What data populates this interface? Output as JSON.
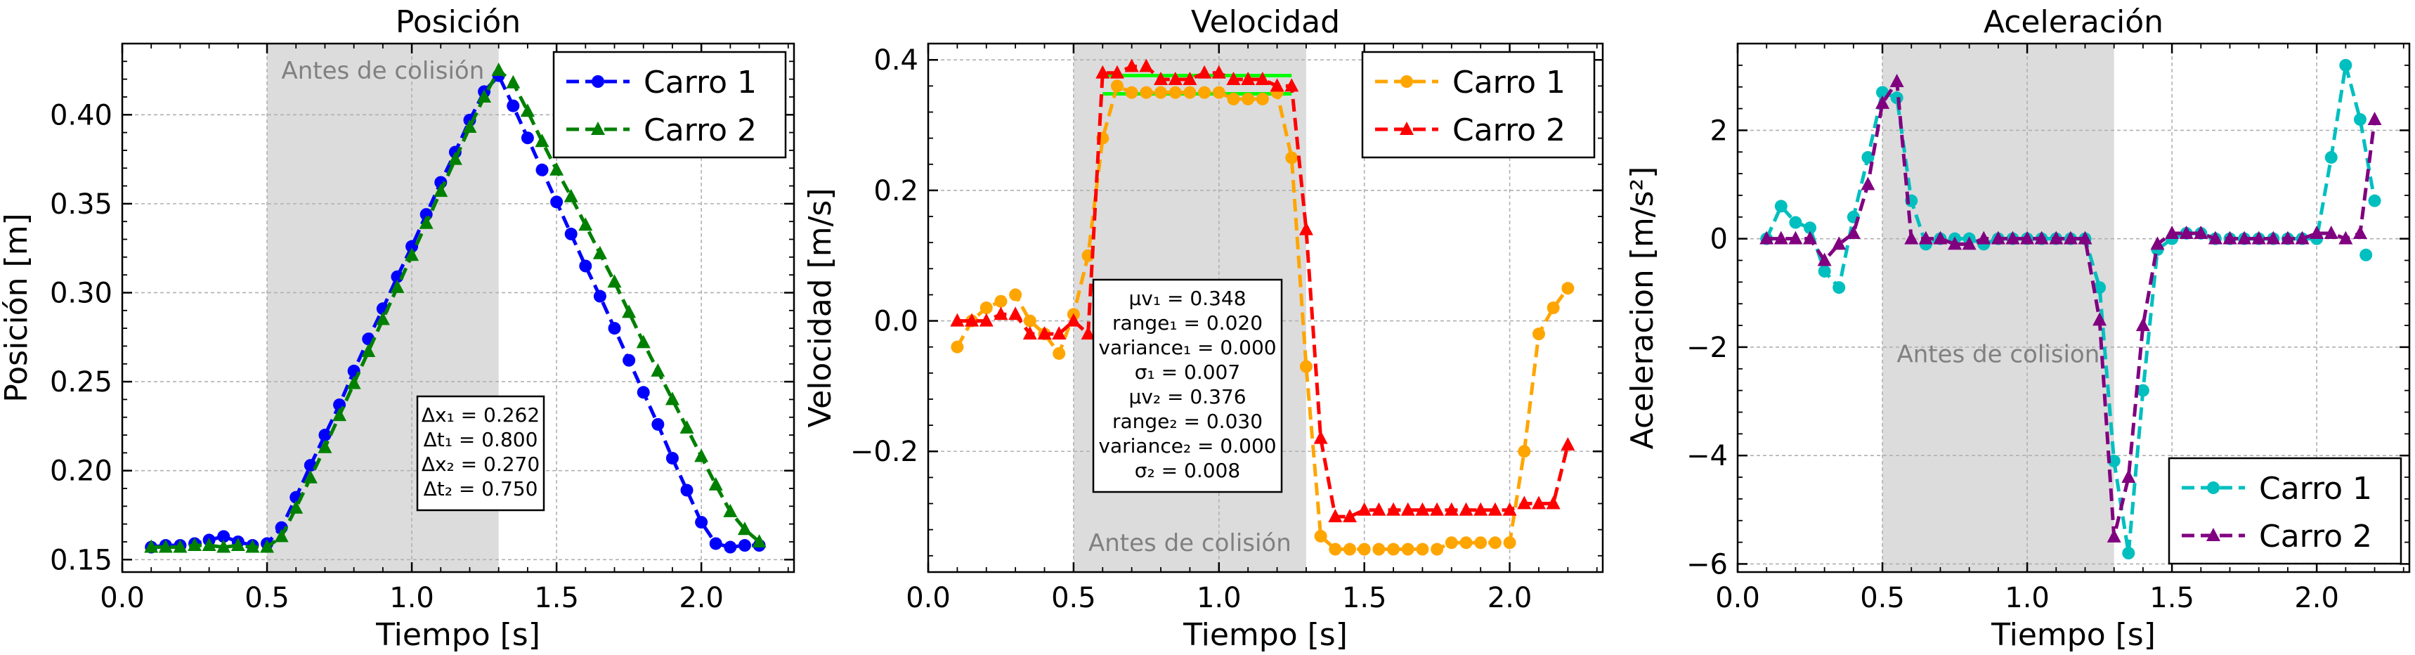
{
  "xlabel": "Tiempo [s]",
  "chart_data": [
    {
      "type": "line",
      "title": "Posición",
      "xlabel": "Tiempo [s]",
      "ylabel": "Posición [m]",
      "xlim": [
        0.0,
        2.32
      ],
      "ylim": [
        0.143,
        0.44
      ],
      "xticks": [
        0.0,
        0.5,
        1.0,
        1.5,
        2.0
      ],
      "xtick_labels": [
        "0.0",
        "0.5",
        "1.0",
        "1.5",
        "2.0"
      ],
      "yticks": [
        0.15,
        0.2,
        0.25,
        0.3,
        0.35,
        0.4
      ],
      "ytick_labels": [
        "0.15",
        "0.20",
        "0.25",
        "0.30",
        "0.35",
        "0.40"
      ],
      "grid": true,
      "shaded_region": {
        "x": [
          0.5,
          1.3
        ],
        "label": "Antes de colisión",
        "label_position": "top"
      },
      "legend_position": "top-right",
      "series": [
        {
          "name": "Carro 1",
          "color": "#0000ff",
          "marker": "circle",
          "x": [
            0.1,
            0.15,
            0.2,
            0.25,
            0.3,
            0.35,
            0.4,
            0.45,
            0.5,
            0.55,
            0.6,
            0.65,
            0.7,
            0.75,
            0.8,
            0.85,
            0.9,
            0.95,
            1.0,
            1.05,
            1.1,
            1.15,
            1.2,
            1.25,
            1.3,
            1.35,
            1.4,
            1.45,
            1.5,
            1.55,
            1.6,
            1.65,
            1.7,
            1.75,
            1.8,
            1.85,
            1.9,
            1.95,
            2.0,
            2.05,
            2.1,
            2.15,
            2.2
          ],
          "y": [
            0.157,
            0.158,
            0.158,
            0.159,
            0.161,
            0.163,
            0.16,
            0.158,
            0.159,
            0.168,
            0.185,
            0.203,
            0.22,
            0.237,
            0.256,
            0.274,
            0.291,
            0.309,
            0.326,
            0.344,
            0.362,
            0.379,
            0.397,
            0.413,
            0.422,
            0.405,
            0.387,
            0.369,
            0.351,
            0.333,
            0.315,
            0.298,
            0.28,
            0.262,
            0.244,
            0.226,
            0.207,
            0.189,
            0.171,
            0.159,
            0.157,
            0.158,
            0.158
          ]
        },
        {
          "name": "Carro 2",
          "color": "#008000",
          "marker": "triangle",
          "x": [
            0.1,
            0.15,
            0.2,
            0.25,
            0.3,
            0.35,
            0.4,
            0.45,
            0.5,
            0.55,
            0.6,
            0.65,
            0.7,
            0.75,
            0.8,
            0.85,
            0.9,
            0.95,
            1.0,
            1.05,
            1.1,
            1.15,
            1.2,
            1.25,
            1.3,
            1.35,
            1.4,
            1.45,
            1.5,
            1.55,
            1.6,
            1.65,
            1.7,
            1.75,
            1.8,
            1.85,
            1.9,
            1.95,
            2.0,
            2.05,
            2.1,
            2.15,
            2.2
          ],
          "y": [
            0.157,
            0.157,
            0.157,
            0.158,
            0.158,
            0.157,
            0.158,
            0.157,
            0.157,
            0.163,
            0.179,
            0.196,
            0.213,
            0.231,
            0.249,
            0.267,
            0.285,
            0.303,
            0.321,
            0.339,
            0.357,
            0.375,
            0.393,
            0.41,
            0.425,
            0.418,
            0.402,
            0.385,
            0.369,
            0.354,
            0.338,
            0.322,
            0.306,
            0.289,
            0.272,
            0.256,
            0.24,
            0.224,
            0.208,
            0.192,
            0.177,
            0.167,
            0.16
          ]
        }
      ],
      "annotation": [
        "Δx₁ = 0.262",
        "Δt₁ = 0.800",
        "Δx₂ = 0.270",
        "Δt₂ = 0.750"
      ]
    },
    {
      "type": "line",
      "title": "Velocidad",
      "xlabel": "Tiempo [s]",
      "ylabel": "Velocidad [m/s]",
      "xlim": [
        0.0,
        2.32
      ],
      "ylim": [
        -0.385,
        0.425
      ],
      "xticks": [
        0.0,
        0.5,
        1.0,
        1.5,
        2.0
      ],
      "xtick_labels": [
        "0.0",
        "0.5",
        "1.0",
        "1.5",
        "2.0"
      ],
      "yticks": [
        -0.2,
        0.0,
        0.2,
        0.4
      ],
      "ytick_labels": [
        "−0.2",
        "0.0",
        "0.2",
        "0.4"
      ],
      "grid": true,
      "shaded_region": {
        "x": [
          0.5,
          1.3
        ],
        "label": "Antes de colisión",
        "label_position": "bottom"
      },
      "legend_position": "top-right",
      "series": [
        {
          "name": "Carro 1",
          "color": "#ffa500",
          "marker": "circle",
          "x": [
            0.1,
            0.15,
            0.2,
            0.25,
            0.3,
            0.35,
            0.4,
            0.45,
            0.5,
            0.55,
            0.6,
            0.65,
            0.7,
            0.75,
            0.8,
            0.85,
            0.9,
            0.95,
            1.0,
            1.05,
            1.1,
            1.15,
            1.2,
            1.25,
            1.3,
            1.35,
            1.4,
            1.45,
            1.5,
            1.55,
            1.6,
            1.65,
            1.7,
            1.75,
            1.8,
            1.85,
            1.9,
            1.95,
            2.0,
            2.05,
            2.1,
            2.15,
            2.2
          ],
          "y": [
            -0.04,
            0.0,
            0.02,
            0.03,
            0.04,
            0.0,
            -0.02,
            -0.05,
            0.01,
            0.1,
            0.28,
            0.36,
            0.35,
            0.35,
            0.35,
            0.35,
            0.35,
            0.35,
            0.35,
            0.34,
            0.34,
            0.34,
            0.35,
            0.25,
            -0.07,
            -0.33,
            -0.35,
            -0.35,
            -0.35,
            -0.35,
            -0.35,
            -0.35,
            -0.35,
            -0.35,
            -0.34,
            -0.34,
            -0.34,
            -0.34,
            -0.34,
            -0.2,
            -0.02,
            0.02,
            0.05
          ]
        },
        {
          "name": "Carro 2",
          "color": "#ff0000",
          "marker": "triangle",
          "x": [
            0.1,
            0.15,
            0.2,
            0.25,
            0.3,
            0.35,
            0.4,
            0.45,
            0.5,
            0.55,
            0.6,
            0.65,
            0.7,
            0.75,
            0.8,
            0.85,
            0.9,
            0.95,
            1.0,
            1.05,
            1.1,
            1.15,
            1.2,
            1.25,
            1.3,
            1.35,
            1.4,
            1.45,
            1.5,
            1.55,
            1.6,
            1.65,
            1.7,
            1.75,
            1.8,
            1.85,
            1.9,
            1.95,
            2.0,
            2.05,
            2.1,
            2.15,
            2.2
          ],
          "y": [
            0.0,
            0.0,
            0.0,
            0.01,
            0.01,
            -0.02,
            -0.02,
            -0.02,
            0.0,
            -0.02,
            0.38,
            0.38,
            0.39,
            0.39,
            0.37,
            0.37,
            0.37,
            0.38,
            0.38,
            0.37,
            0.37,
            0.37,
            0.36,
            0.36,
            0.14,
            -0.18,
            -0.3,
            -0.3,
            -0.29,
            -0.29,
            -0.29,
            -0.29,
            -0.29,
            -0.29,
            -0.29,
            -0.29,
            -0.29,
            -0.29,
            -0.29,
            -0.28,
            -0.28,
            -0.28,
            -0.19
          ]
        }
      ],
      "reference_lines": [
        {
          "color": "#00ff00",
          "y": 0.348,
          "x": [
            0.6,
            1.25
          ]
        },
        {
          "color": "#00ff00",
          "y": 0.376,
          "x": [
            0.6,
            1.25
          ]
        }
      ],
      "annotation": [
        "μv₁ = 0.348",
        "range₁ = 0.020",
        "variance₁ = 0.000",
        "σ₁ = 0.007",
        "μv₂ = 0.376",
        "range₂ = 0.030",
        "variance₂ = 0.000",
        "σ₂ = 0.008"
      ]
    },
    {
      "type": "line",
      "title": "Aceleración",
      "xlabel": "Tiempo [s]",
      "ylabel": "Aceleracion [m/s²]",
      "xlim": [
        0.0,
        2.32
      ],
      "ylim": [
        -6.15,
        3.6
      ],
      "xticks": [
        0.0,
        0.5,
        1.0,
        1.5,
        2.0
      ],
      "xtick_labels": [
        "0.0",
        "0.5",
        "1.0",
        "1.5",
        "2.0"
      ],
      "yticks": [
        -6,
        -4,
        -2,
        0,
        2
      ],
      "ytick_labels": [
        "−6",
        "−4",
        "−2",
        "0",
        "2"
      ],
      "grid": true,
      "shaded_region": {
        "x": [
          0.5,
          1.3
        ],
        "label": "Antes de colision",
        "label_position": "middle"
      },
      "legend_position": "bottom-right",
      "series": [
        {
          "name": "Carro 1",
          "color": "#00bfbf",
          "marker": "circle",
          "x": [
            0.1,
            0.15,
            0.2,
            0.25,
            0.3,
            0.35,
            0.4,
            0.45,
            0.5,
            0.55,
            0.6,
            0.65,
            0.7,
            0.75,
            0.8,
            0.85,
            0.9,
            0.95,
            1.0,
            1.05,
            1.1,
            1.15,
            1.2,
            1.25,
            1.3,
            1.35,
            1.4,
            1.45,
            1.5,
            1.55,
            1.6,
            1.65,
            1.7,
            1.75,
            1.8,
            1.85,
            1.9,
            1.95,
            2.0,
            2.05,
            2.1,
            2.15,
            2.2
          ],
          "y": [
            0.0,
            0.6,
            0.3,
            0.2,
            -0.6,
            -0.9,
            0.4,
            1.5,
            2.7,
            2.6,
            0.7,
            -0.1,
            0.0,
            0.0,
            0.0,
            -0.1,
            0.0,
            0.0,
            0.0,
            0.0,
            0.0,
            0.0,
            0.0,
            -0.9,
            -4.1,
            -5.8,
            -2.8,
            -0.2,
            0.0,
            0.1,
            0.1,
            0.0,
            0.0,
            0.0,
            0.0,
            0.0,
            0.0,
            0.0,
            0.0,
            1.5,
            3.2,
            2.2,
            0.7
          ]
        },
        {
          "name": "Carro 2",
          "color": "#800080",
          "marker": "triangle",
          "x": [
            0.1,
            0.15,
            0.2,
            0.25,
            0.3,
            0.35,
            0.4,
            0.45,
            0.5,
            0.55,
            0.6,
            0.65,
            0.7,
            0.75,
            0.8,
            0.85,
            0.9,
            0.95,
            1.0,
            1.05,
            1.1,
            1.15,
            1.2,
            1.25,
            1.3,
            1.35,
            1.4,
            1.45,
            1.5,
            1.55,
            1.6,
            1.65,
            1.7,
            1.75,
            1.8,
            1.85,
            1.9,
            1.95,
            2.0,
            2.05,
            2.1,
            2.15,
            2.2
          ],
          "y": [
            0.0,
            0.0,
            0.0,
            0.0,
            -0.4,
            -0.1,
            0.1,
            1.0,
            2.5,
            2.9,
            0.0,
            0.0,
            0.0,
            -0.1,
            -0.1,
            0.0,
            0.0,
            0.0,
            0.0,
            0.0,
            0.0,
            0.0,
            0.0,
            -1.5,
            -5.5,
            -4.4,
            -1.6,
            -0.1,
            0.1,
            0.1,
            0.1,
            0.0,
            0.0,
            0.0,
            0.0,
            0.0,
            0.0,
            0.0,
            0.1,
            0.1,
            0.0,
            0.1,
            2.2
          ]
        }
      ],
      "extra_points": [
        {
          "series": 0,
          "x": 2.17,
          "y": -0.3
        }
      ]
    }
  ]
}
